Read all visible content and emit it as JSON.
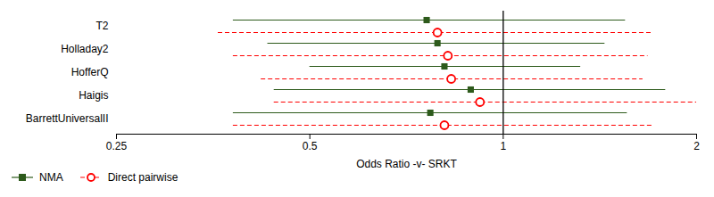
{
  "chart_data": {
    "type": "forest",
    "xlabel": "Odds Ratio -v- SRKT",
    "categories": [
      "T2",
      "Holladay2",
      "HofferQ",
      "Haigis",
      "BarrettUniversalII"
    ],
    "series": [
      {
        "name": "NMA",
        "color": "#2d5a1b",
        "marker": "square",
        "line_style": "solid",
        "values": [
          0.76,
          0.79,
          0.81,
          0.89,
          0.77
        ],
        "ci_low": [
          0.38,
          0.43,
          0.5,
          0.44,
          0.38
        ],
        "ci_high": [
          1.55,
          1.44,
          1.32,
          1.79,
          1.56
        ]
      },
      {
        "name": "Direct pairwise",
        "color": "#ff0000",
        "marker": "circle",
        "line_style": "dashed",
        "values": [
          0.79,
          0.82,
          0.83,
          0.92,
          0.81
        ],
        "ci_low": [
          0.36,
          0.38,
          0.42,
          0.44,
          0.38
        ],
        "ci_high": [
          1.71,
          1.68,
          1.65,
          2.0,
          1.72
        ]
      }
    ],
    "reference_line": 1.0,
    "log": "x",
    "xlim": [
      0.25,
      2.0
    ],
    "xticks": [
      0.25,
      0.5,
      1,
      2
    ],
    "grid": false,
    "legend": "lower left"
  }
}
